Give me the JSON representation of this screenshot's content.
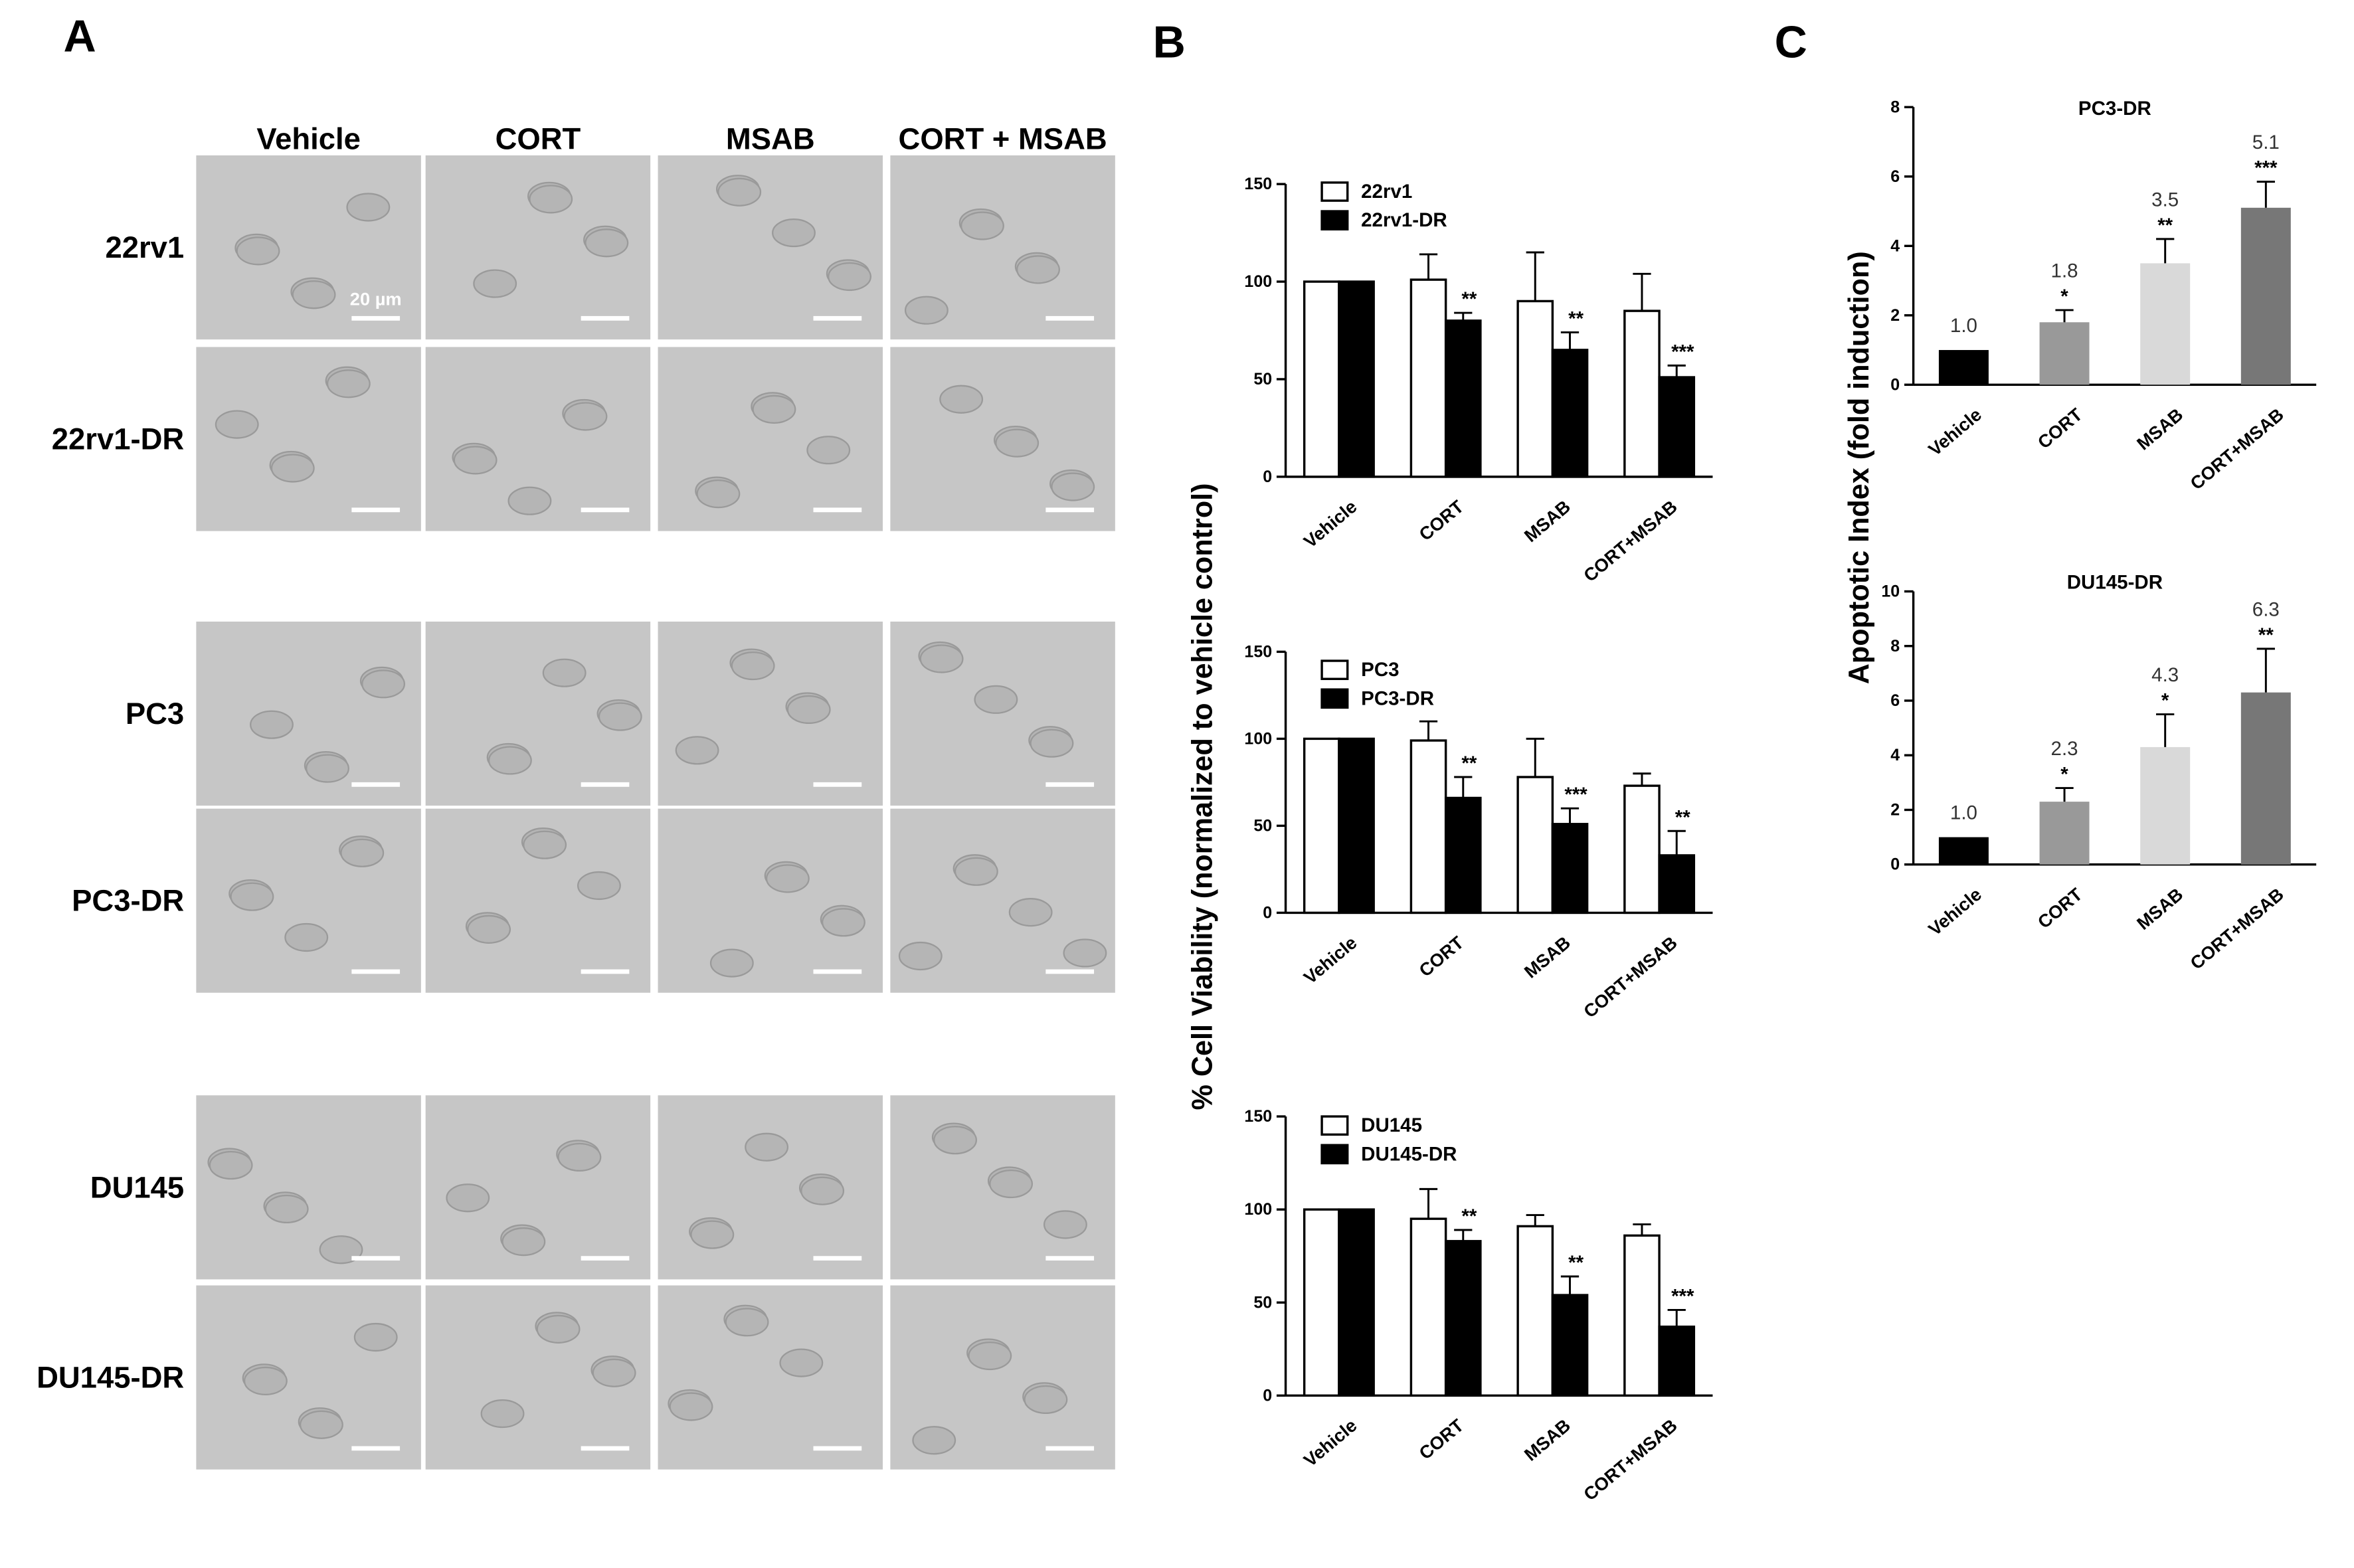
{
  "panel_labels": [
    "A",
    "B",
    "C"
  ],
  "micrographs": {
    "columns": [
      "Vehicle",
      "CORT",
      "MSAB",
      "CORT + MSAB"
    ],
    "rows": [
      "22rv1",
      "22rv1-DR",
      "PC3",
      "PC3-DR",
      "DU145",
      "DU145-DR"
    ],
    "scale_bar": "20 µm"
  },
  "panel_b_ylabel": "% Cell Viability (normalized to vehicle control)",
  "panel_c_ylabel": "Apoptotic Index (fold induction)",
  "chart_data": [
    {
      "type": "bar",
      "categories": [
        "Vehicle",
        "CORT",
        "MSAB",
        "CORT+MSAB"
      ],
      "ylim": [
        0,
        150
      ],
      "yticks": [
        0,
        50,
        100,
        150
      ],
      "series": [
        {
          "name": "22rv1",
          "color": "#ffffff",
          "values": [
            100,
            101,
            90,
            85
          ],
          "errors": [
            null,
            13,
            25,
            19
          ],
          "annotations": [
            null,
            null,
            null,
            null
          ]
        },
        {
          "name": "22rv1-DR",
          "color": "#000000",
          "values": [
            100,
            80,
            65,
            51
          ],
          "errors": [
            null,
            4,
            9,
            6
          ],
          "annotations": [
            null,
            "**",
            "**",
            "***"
          ]
        }
      ]
    },
    {
      "type": "bar",
      "categories": [
        "Vehicle",
        "CORT",
        "MSAB",
        "CORT+MSAB"
      ],
      "ylim": [
        0,
        150
      ],
      "yticks": [
        0,
        50,
        100,
        150
      ],
      "series": [
        {
          "name": "PC3",
          "color": "#ffffff",
          "values": [
            100,
            99,
            78,
            73
          ],
          "errors": [
            null,
            11,
            22,
            7
          ],
          "annotations": [
            null,
            null,
            null,
            null
          ]
        },
        {
          "name": "PC3-DR",
          "color": "#000000",
          "values": [
            100,
            66,
            51,
            33
          ],
          "errors": [
            null,
            12,
            9,
            14
          ],
          "annotations": [
            null,
            "**",
            "***",
            "**"
          ]
        }
      ]
    },
    {
      "type": "bar",
      "categories": [
        "Vehicle",
        "CORT",
        "MSAB",
        "CORT+MSAB"
      ],
      "ylim": [
        0,
        150
      ],
      "yticks": [
        0,
        50,
        100,
        150
      ],
      "series": [
        {
          "name": "DU145",
          "color": "#ffffff",
          "values": [
            100,
            95,
            91,
            86
          ],
          "errors": [
            null,
            16,
            6,
            6
          ],
          "annotations": [
            null,
            null,
            null,
            null
          ]
        },
        {
          "name": "DU145-DR",
          "color": "#000000",
          "values": [
            100,
            83,
            54,
            37
          ],
          "errors": [
            null,
            6,
            10,
            9
          ],
          "annotations": [
            null,
            "**",
            "**",
            "***"
          ]
        }
      ]
    },
    {
      "type": "bar",
      "title": "PC3-DR",
      "categories": [
        "Vehicle",
        "CORT",
        "MSAB",
        "CORT+MSAB"
      ],
      "values": [
        1.0,
        1.8,
        3.5,
        5.1
      ],
      "value_labels": [
        "1.0",
        "1.8",
        "3.5",
        "5.1"
      ],
      "errors": [
        null,
        0.35,
        0.7,
        0.75
      ],
      "annotations": [
        null,
        "*",
        "**",
        "***"
      ],
      "colors": [
        "#000000",
        "#999999",
        "#d9d9d9",
        "#777777"
      ],
      "ylim": [
        0,
        8
      ],
      "yticks": [
        0,
        2,
        4,
        6,
        8
      ]
    },
    {
      "type": "bar",
      "title": "DU145-DR",
      "categories": [
        "Vehicle",
        "CORT",
        "MSAB",
        "CORT+MSAB"
      ],
      "values": [
        1.0,
        2.3,
        4.3,
        6.3
      ],
      "value_labels": [
        "1.0",
        "2.3",
        "4.3",
        "6.3"
      ],
      "errors": [
        null,
        0.5,
        1.2,
        1.6
      ],
      "annotations": [
        null,
        "*",
        "*",
        "**"
      ],
      "colors": [
        "#000000",
        "#999999",
        "#d9d9d9",
        "#777777"
      ],
      "ylim": [
        0,
        10
      ],
      "yticks": [
        0,
        2,
        4,
        6,
        8,
        10
      ]
    }
  ]
}
